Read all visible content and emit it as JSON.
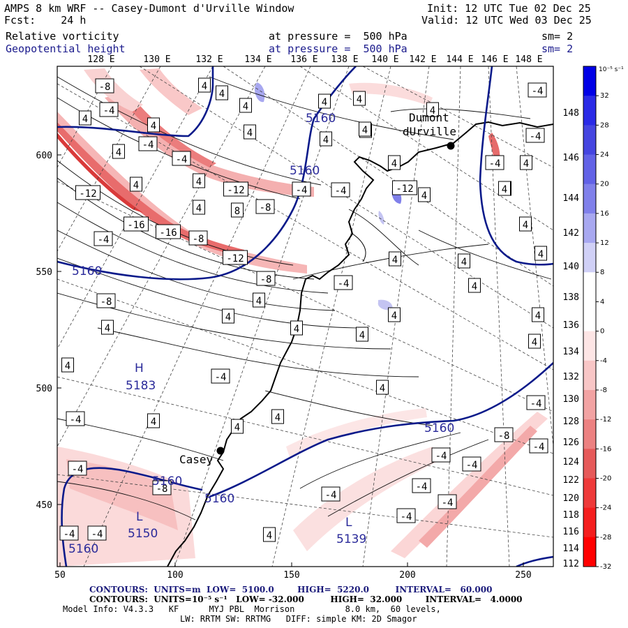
{
  "header": {
    "model_title": "AMPS 8 km WRF -- Casey-Dumont d'Urville Window",
    "init": "Init: 12 UTC Tue 02 Dec 25",
    "fcst": "Fcst:    24 h",
    "valid": "Valid: 12 UTC Wed 03 Dec 25",
    "field1": {
      "name": "Relative vorticity",
      "level": "at pressure =  500 hPa",
      "smooth": "sm= 2"
    },
    "field2": {
      "name": "Geopotential height",
      "level": "at pressure =  500 hPa",
      "smooth": "sm= 2"
    }
  },
  "top_lon_labels": [
    "128 E",
    "130 E",
    "132 E",
    "134 E",
    "136 E",
    "138 E",
    "140 E",
    "142 E",
    "144 E",
    "146 E",
    "148 E"
  ],
  "right_lon_labels": [
    "148 E",
    "146 E",
    "144 E",
    "142 E",
    "140 E",
    "138 E",
    "136 E",
    "134 E",
    "132 E",
    "130 E",
    "128 E",
    "126 E",
    "124 E",
    "122 E",
    "120 E",
    "118 E",
    "116 E",
    "114 E",
    "112 E"
  ],
  "x_ticks": [
    "50",
    "100",
    "150",
    "200",
    "250"
  ],
  "y_ticks": [
    "600",
    "550",
    "500",
    "450"
  ],
  "colorbar": {
    "unit": "10⁻⁵ s⁻¹",
    "labels": [
      "32",
      "28",
      "24",
      "20",
      "16",
      "12",
      "8",
      "4",
      "0",
      "-4",
      "-8",
      "-12",
      "-16",
      "-20",
      "-24",
      "-28",
      "-32"
    ],
    "colors": [
      "#0000e6",
      "#2a2ae6",
      "#4545e0",
      "#6262e6",
      "#8080ea",
      "#a8a8f0",
      "#d0d0f6",
      "#ffffff",
      "#ffffff",
      "#fde5e5",
      "#f8c6c6",
      "#f2a3a3",
      "#ec8181",
      "#e65a5a",
      "#ee3a3a",
      "#f41e1e",
      "#ff0000"
    ]
  },
  "places": [
    {
      "name": "Dumont",
      "name2": "dUrville"
    },
    {
      "name": "Casey"
    }
  ],
  "height_labels": [
    "5160",
    "5160",
    "5160",
    "5160",
    "5160",
    "5160",
    "5160"
  ],
  "highs_lows": [
    {
      "type": "H",
      "value": "5183"
    },
    {
      "type": "L",
      "value": "5150"
    },
    {
      "type": "L",
      "value": "5139"
    }
  ],
  "vort_labels": [
    "-8",
    "-4",
    "4",
    "4",
    "4",
    "4",
    "4",
    "4",
    "-4",
    "4",
    "-4",
    "4",
    "8",
    "4",
    "4",
    "4",
    "4",
    "-12",
    "-8",
    "-4",
    "-4",
    "-8",
    "-12",
    "-12",
    "-8",
    "4",
    "-16",
    "-16",
    "-4",
    "4",
    "4",
    "-4",
    "4",
    "-12",
    "-8",
    "4",
    "4",
    "-4",
    "4",
    "4",
    "4",
    "4",
    "4",
    "4",
    "4",
    "4",
    "4",
    "4",
    "4",
    "4",
    "4",
    "4",
    "4",
    "4",
    "4",
    "-4",
    "-4",
    "-4",
    "-8",
    "-4",
    "-8",
    "-4",
    "-4",
    "-4",
    "-4",
    "4",
    "-4",
    "-4",
    "-4",
    "4",
    "-4",
    "4",
    "-4",
    "-4",
    "-4",
    "4",
    "4"
  ],
  "footer": {
    "contours1": "CONTOURS:  UNITS=m  LOW=  5100.0        HIGH=  5220.0         INTERVAL=   60.000",
    "contours2": "CONTOURS:  UNITS=10⁻⁵ s⁻¹   LOW= -32.000         HIGH=  32.000        INTERVAL=   4.0000",
    "model_info": "Model Info: V4.3.3   KF      MYJ PBL  Morrison          8.0 km,  60 levels,",
    "model_info2": "LW: RRTM SW: RRTMG   DIFF: simple KM: 2D Smagor"
  }
}
